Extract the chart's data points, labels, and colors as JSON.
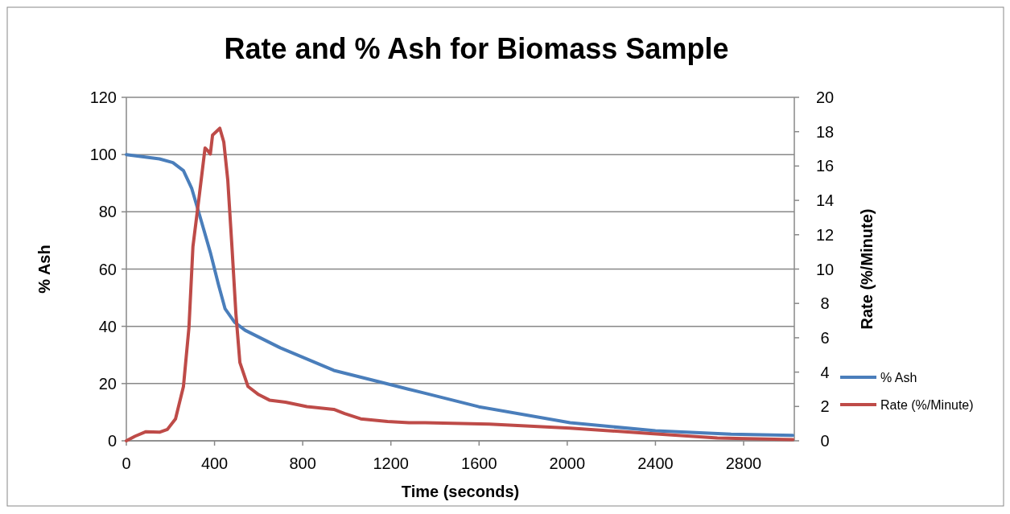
{
  "chart_data": {
    "type": "line",
    "title": "Rate and % Ash for Biomass Sample",
    "xlabel": "Time (seconds)",
    "ylabel": "% Ash",
    "y2label": "Rate (%/Minute)",
    "xlim": [
      0,
      3030
    ],
    "xticks": [
      0,
      400,
      800,
      1200,
      1600,
      2000,
      2400,
      2800
    ],
    "ylim": [
      0,
      120
    ],
    "yticks": [
      0,
      20,
      40,
      60,
      80,
      100,
      120
    ],
    "y2lim": [
      0,
      20
    ],
    "y2ticks": [
      0,
      2,
      4,
      6,
      8,
      10,
      12,
      14,
      16,
      18,
      20
    ],
    "grid": "y",
    "legend": "right",
    "marker": "none",
    "line_style": "solid",
    "series": [
      {
        "name": "% Ash",
        "color": "#4a7ebb",
        "x": [
          0,
          150,
          211,
          259,
          296,
          332,
          381,
          418,
          448,
          491,
          539,
          698,
          941,
          1185,
          1282,
          1355,
          1599,
          2013,
          2400,
          2743,
          3023
        ],
        "values": [
          100,
          98.5,
          97.2,
          94.4,
          88.3,
          78.9,
          65.8,
          54.5,
          46.1,
          41.4,
          38.6,
          32.5,
          24.6,
          19.9,
          18,
          16.6,
          11.9,
          6.3,
          3.5,
          2.3,
          1.9
        ]
      },
      {
        "name": "Rate (%/Minute)",
        "color": "#be4b48",
        "axis": "y2",
        "x": [
          0,
          40,
          89,
          150,
          186,
          223,
          259,
          284,
          302,
          332,
          357,
          369,
          381,
          391,
          424,
          442,
          460,
          479,
          497,
          515,
          552,
          600,
          649,
          722,
          819,
          941,
          990,
          1063,
          1185,
          1282,
          1355,
          1647,
          2013,
          2378,
          2681,
          3023
        ],
        "values": [
          0,
          0.27,
          0.53,
          0.5,
          0.66,
          1.28,
          3.16,
          6.6,
          11.3,
          14.4,
          17.05,
          16.9,
          16.7,
          17.8,
          18.2,
          17.4,
          15.2,
          11.3,
          7.4,
          4.56,
          3.16,
          2.69,
          2.37,
          2.25,
          1.99,
          1.83,
          1.59,
          1.28,
          1.12,
          1.05,
          1.05,
          0.97,
          0.74,
          0.42,
          0.16,
          0.07
        ]
      }
    ]
  }
}
